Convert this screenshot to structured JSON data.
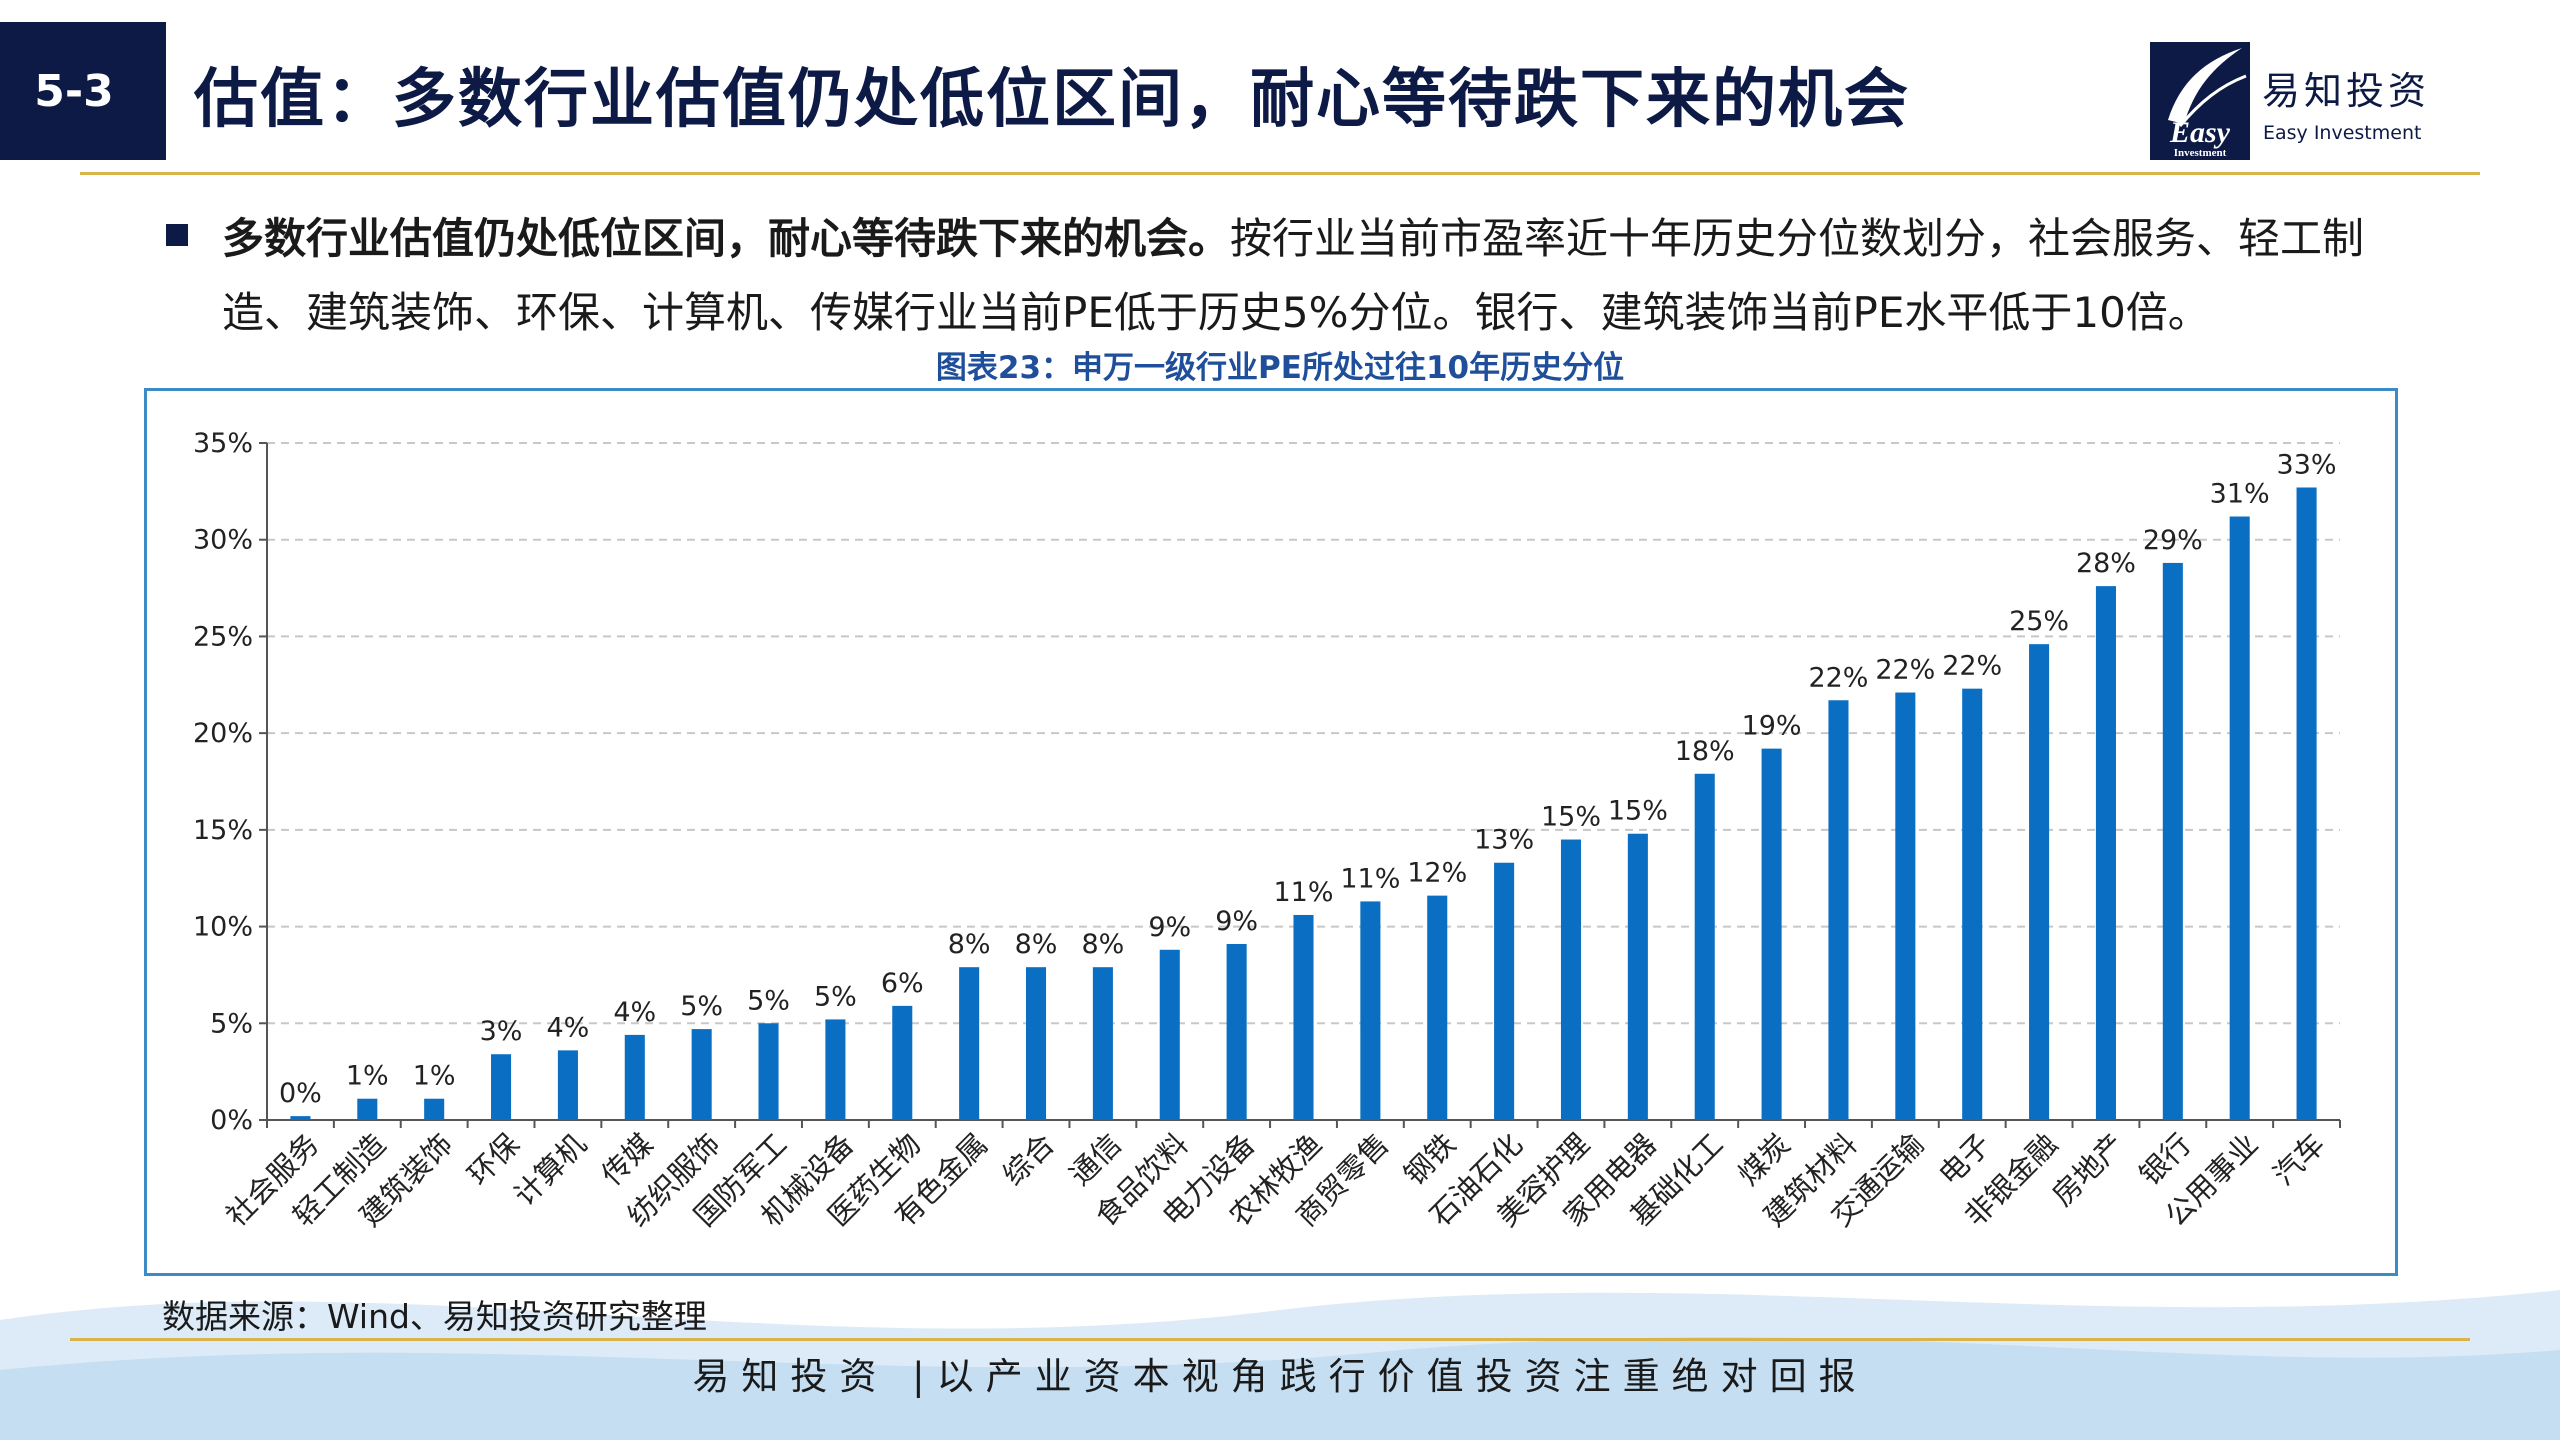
{
  "header": {
    "section_number": "5-3",
    "title": "估值：多数行业估值仍处低位区间，耐心等待跌下来的机会"
  },
  "brand": {
    "logo_text": "Easy",
    "logo_subtext": "Investment",
    "name_cn": "易知投资",
    "name_en": "Easy Investment"
  },
  "summary": {
    "bold_lead": "多数行业估值仍处低位区间，耐心等待跌下来的机会。",
    "text": "按行业当前市盈率近十年历史分位数划分，社会服务、轻工制造、建筑装饰、环保、计算机、传媒行业当前PE低于历史5%分位。银行、建筑装饰当前PE水平低于10倍。"
  },
  "chart_caption": "图表23：申万一级行业PE所处过往10年历史分位",
  "source": "数据来源：Wind、易知投资研究整理",
  "footer": {
    "slogan": "易知投资 |以产业资本视角践行价值投资注重绝对回报"
  },
  "colors": {
    "navy": "#0d1a45",
    "gold": "#d9b44a",
    "bar": "#0a6fc2",
    "caption": "#1f4e9b",
    "frame": "#3b8cc4"
  },
  "chart_data": {
    "type": "bar",
    "title": "图表23：申万一级行业PE所处过往10年历史分位",
    "categories": [
      "社会服务",
      "轻工制造",
      "建筑装饰",
      "环保",
      "计算机",
      "传媒",
      "纺织服饰",
      "国防军工",
      "机械设备",
      "医药生物",
      "有色金属",
      "综合",
      "通信",
      "食品饮料",
      "电力设备",
      "农林牧渔",
      "商贸零售",
      "钢铁",
      "石油石化",
      "美容护理",
      "家用电器",
      "基础化工",
      "煤炭",
      "建筑材料",
      "交通运输",
      "电子",
      "非银金融",
      "房地产",
      "银行",
      "公用事业",
      "汽车"
    ],
    "values": [
      0.2,
      1.1,
      1.1,
      3.4,
      3.6,
      4.4,
      4.7,
      5.0,
      5.2,
      5.9,
      7.9,
      7.9,
      7.9,
      8.8,
      9.1,
      10.6,
      11.3,
      11.6,
      13.3,
      14.5,
      14.8,
      17.9,
      19.2,
      21.7,
      22.1,
      22.3,
      24.6,
      27.6,
      28.8,
      31.2,
      32.7
    ],
    "data_labels": [
      "0%",
      "1%",
      "1%",
      "3%",
      "4%",
      "4%",
      "5%",
      "5%",
      "5%",
      "6%",
      "8%",
      "8%",
      "8%",
      "9%",
      "9%",
      "11%",
      "11%",
      "12%",
      "13%",
      "15%",
      "15%",
      "18%",
      "19%",
      "22%",
      "22%",
      "22%",
      "25%",
      "28%",
      "29%",
      "31%",
      "33%"
    ],
    "yticks": [
      "0%",
      "5%",
      "10%",
      "15%",
      "20%",
      "25%",
      "30%",
      "35%"
    ],
    "ylim": [
      0,
      35
    ],
    "xlabel": "",
    "ylabel": "",
    "grid": true,
    "legend": "none"
  }
}
